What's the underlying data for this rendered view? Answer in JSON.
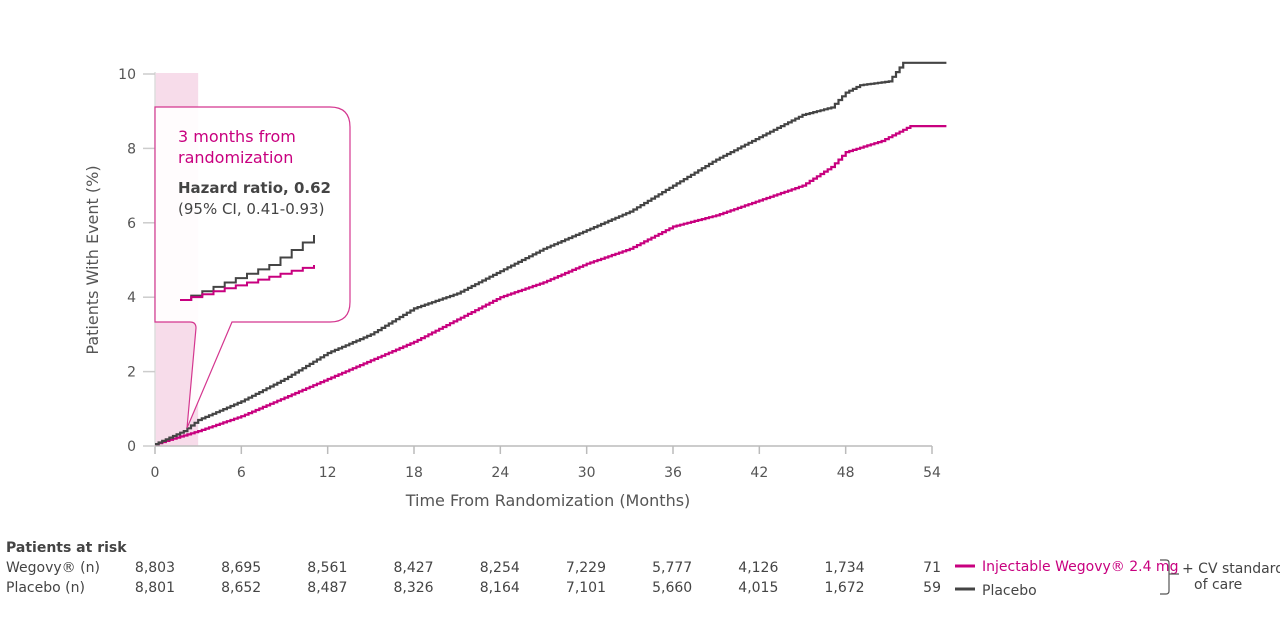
{
  "chart_data": {
    "type": "line",
    "xlabel": "Time From Randomization (Months)",
    "ylabel": "Patients With Event (%)",
    "xlim": [
      0,
      55
    ],
    "ylim": [
      0,
      10
    ],
    "xticks": [
      0,
      6,
      12,
      18,
      24,
      30,
      36,
      42,
      48,
      54
    ],
    "yticks": [
      0,
      2,
      4,
      6,
      8,
      10
    ],
    "grid": false,
    "step": true,
    "series": [
      {
        "name": "Injectable Wegovy® 2.4 mg",
        "color": "#c8007f",
        "x": [
          0,
          3,
          6,
          9,
          12,
          15,
          18,
          21,
          24,
          27,
          30,
          33,
          36,
          39,
          42,
          45,
          47,
          48,
          50.5,
          52.5,
          55
        ],
        "y": [
          0.05,
          0.4,
          0.8,
          1.3,
          1.8,
          2.3,
          2.8,
          3.4,
          4.0,
          4.4,
          4.9,
          5.3,
          5.9,
          6.2,
          6.6,
          7.0,
          7.5,
          7.9,
          8.2,
          8.6,
          8.6
        ]
      },
      {
        "name": "Placebo",
        "color": "#444444",
        "x": [
          0,
          2,
          3,
          6,
          9,
          12,
          15,
          18,
          21,
          24,
          27,
          30,
          33,
          36,
          39,
          42,
          45,
          47,
          48,
          49,
          51,
          52,
          55
        ],
        "y": [
          0.05,
          0.4,
          0.7,
          1.2,
          1.8,
          2.5,
          3.0,
          3.7,
          4.1,
          4.7,
          5.3,
          5.8,
          6.3,
          7.0,
          7.7,
          8.3,
          8.9,
          9.1,
          9.5,
          9.7,
          9.8,
          10.3,
          10.3
        ]
      }
    ],
    "highlight_band": {
      "x": [
        0,
        3
      ]
    },
    "annotation": {
      "title": "3 months from randomization",
      "title_line1": "3 months from",
      "title_line2": "randomization",
      "hr": "Hazard ratio, 0.62",
      "ci": "(95% CI, 0.41-0.93)"
    },
    "legend": {
      "placement": "bottom-right",
      "wegovy": "Injectable Wegovy® 2.4 mg",
      "placebo": "Placebo",
      "group_line1": "+ CV standard",
      "group_line2": "of care"
    },
    "risk_table": {
      "title": "Patients at risk",
      "rows": [
        {
          "label": "Wegovy® (n)",
          "values": [
            "8,803",
            "8,695",
            "8,561",
            "8,427",
            "8,254",
            "7,229",
            "5,777",
            "4,126",
            "1,734",
            "71"
          ]
        },
        {
          "label": "Placebo (n)",
          "values": [
            "8,801",
            "8,652",
            "8,487",
            "8,326",
            "8,164",
            "7,101",
            "5,660",
            "4,015",
            "1,672",
            "59"
          ]
        }
      ]
    }
  }
}
